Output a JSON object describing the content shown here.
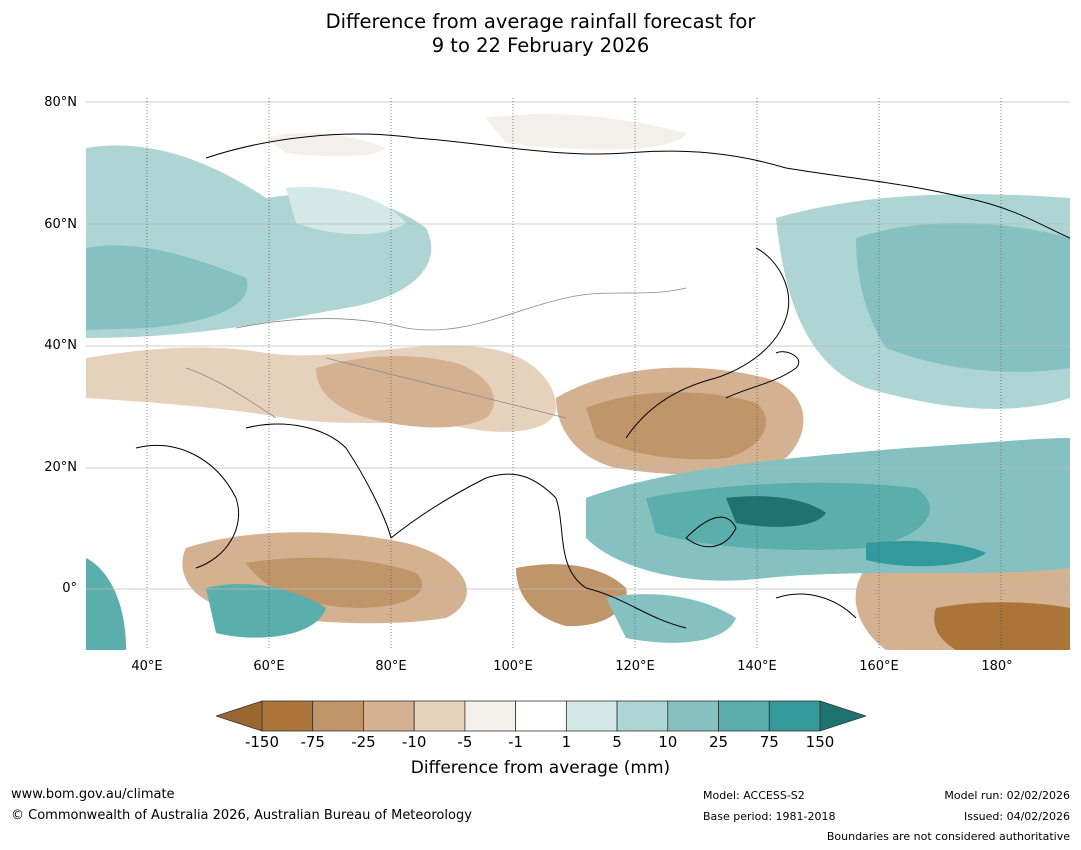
{
  "title": {
    "line1": "Difference from average rainfall forecast for",
    "line2": "9 to 22 February 2026"
  },
  "map": {
    "lat_labels": [
      "80°N",
      "60°N",
      "40°N",
      "20°N",
      "0°"
    ],
    "lon_labels": [
      "40°E",
      "60°E",
      "80°E",
      "100°E",
      "120°E",
      "140°E",
      "160°E",
      "180°"
    ],
    "extent": {
      "lon_min": 30,
      "lon_max": 191,
      "lat_min": -10,
      "lat_max": 80
    }
  },
  "legend": {
    "ticks": [
      "-150",
      "-75",
      "-25",
      "-10",
      "-5",
      "-1",
      "1",
      "5",
      "10",
      "25",
      "75",
      "150"
    ],
    "colors": [
      "#9a6632",
      "#ab7439",
      "#c0956a",
      "#d4b190",
      "#e6d1bd",
      "#f3efea",
      "#ffffff",
      "#d4e8e7",
      "#acd5d4",
      "#84c1c0",
      "#5aaeac",
      "#34999a",
      "#1e7371"
    ],
    "label": "Difference from average (mm)"
  },
  "footer": {
    "website": "www.bom.gov.au/climate",
    "copyright": "© Commonwealth of Australia 2026, Australian Bureau of Meteorology",
    "model": "Model: ACCESS-S2",
    "base_period": "Base period: 1981-2018",
    "model_run": "Model run: 02/02/2026",
    "issued": "Issued: 04/02/2026",
    "disclaimer": "Boundaries are not considered authoritative"
  }
}
